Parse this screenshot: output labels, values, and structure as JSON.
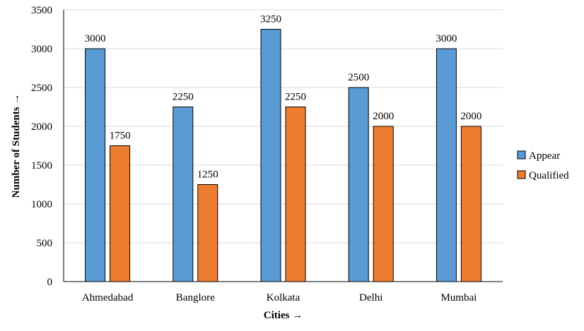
{
  "chart_data": {
    "type": "bar",
    "title": "",
    "xlabel": "Cities →",
    "ylabel": "Number of Students →",
    "categories": [
      "Ahmedabad",
      "Banglore",
      "Kolkata",
      "Delhi",
      "Mumbai"
    ],
    "series": [
      {
        "name": "Appear",
        "values": [
          3000,
          2250,
          3250,
          2500,
          3000
        ],
        "color": "#5B9BD5"
      },
      {
        "name": "Qualified",
        "values": [
          1750,
          1250,
          2250,
          2000,
          2000
        ],
        "color": "#ED7D31"
      }
    ],
    "ylim": [
      0,
      3500
    ],
    "yticks": [
      0,
      500,
      1000,
      1500,
      2000,
      2500,
      3000,
      3500
    ],
    "grid": true,
    "legend": "right",
    "data_labels": true
  }
}
